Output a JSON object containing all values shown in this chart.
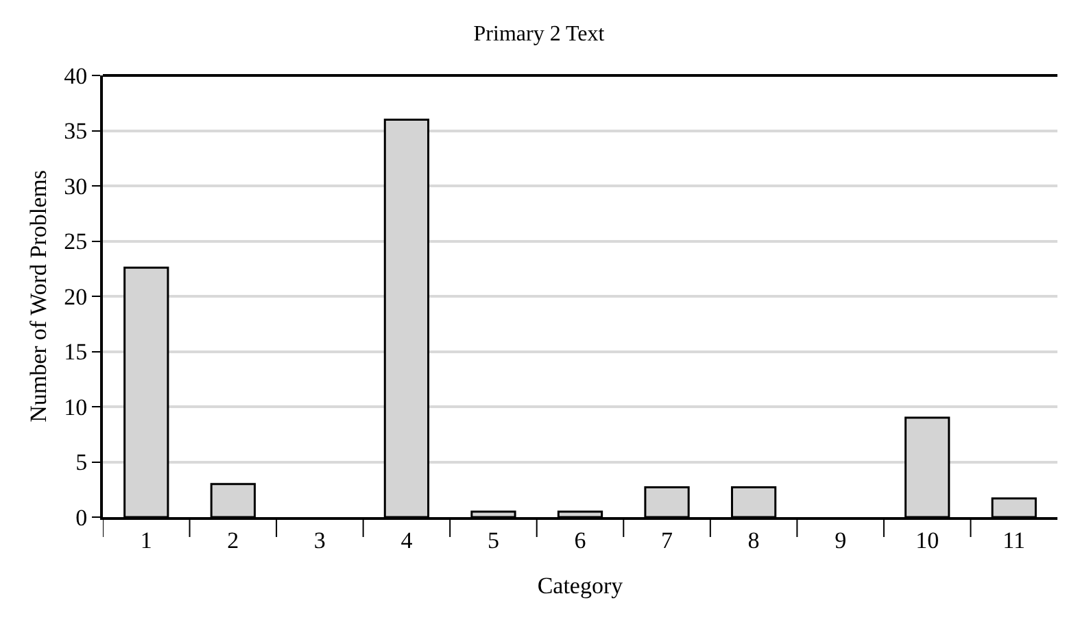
{
  "chart_data": {
    "type": "bar",
    "title": "Primary 2 Text",
    "xlabel": "Category",
    "ylabel": "Number of Word Problems",
    "categories": [
      "1",
      "2",
      "3",
      "4",
      "5",
      "6",
      "7",
      "8",
      "9",
      "10",
      "11"
    ],
    "values": [
      22.6,
      3.0,
      0,
      36.0,
      0.5,
      0.5,
      2.7,
      2.7,
      0,
      9.0,
      1.7
    ],
    "color": "#d4d4d4",
    "ylim": [
      0,
      40
    ],
    "yticks": [
      0,
      5,
      10,
      15,
      20,
      25,
      30,
      35,
      40
    ],
    "grid": "y"
  }
}
